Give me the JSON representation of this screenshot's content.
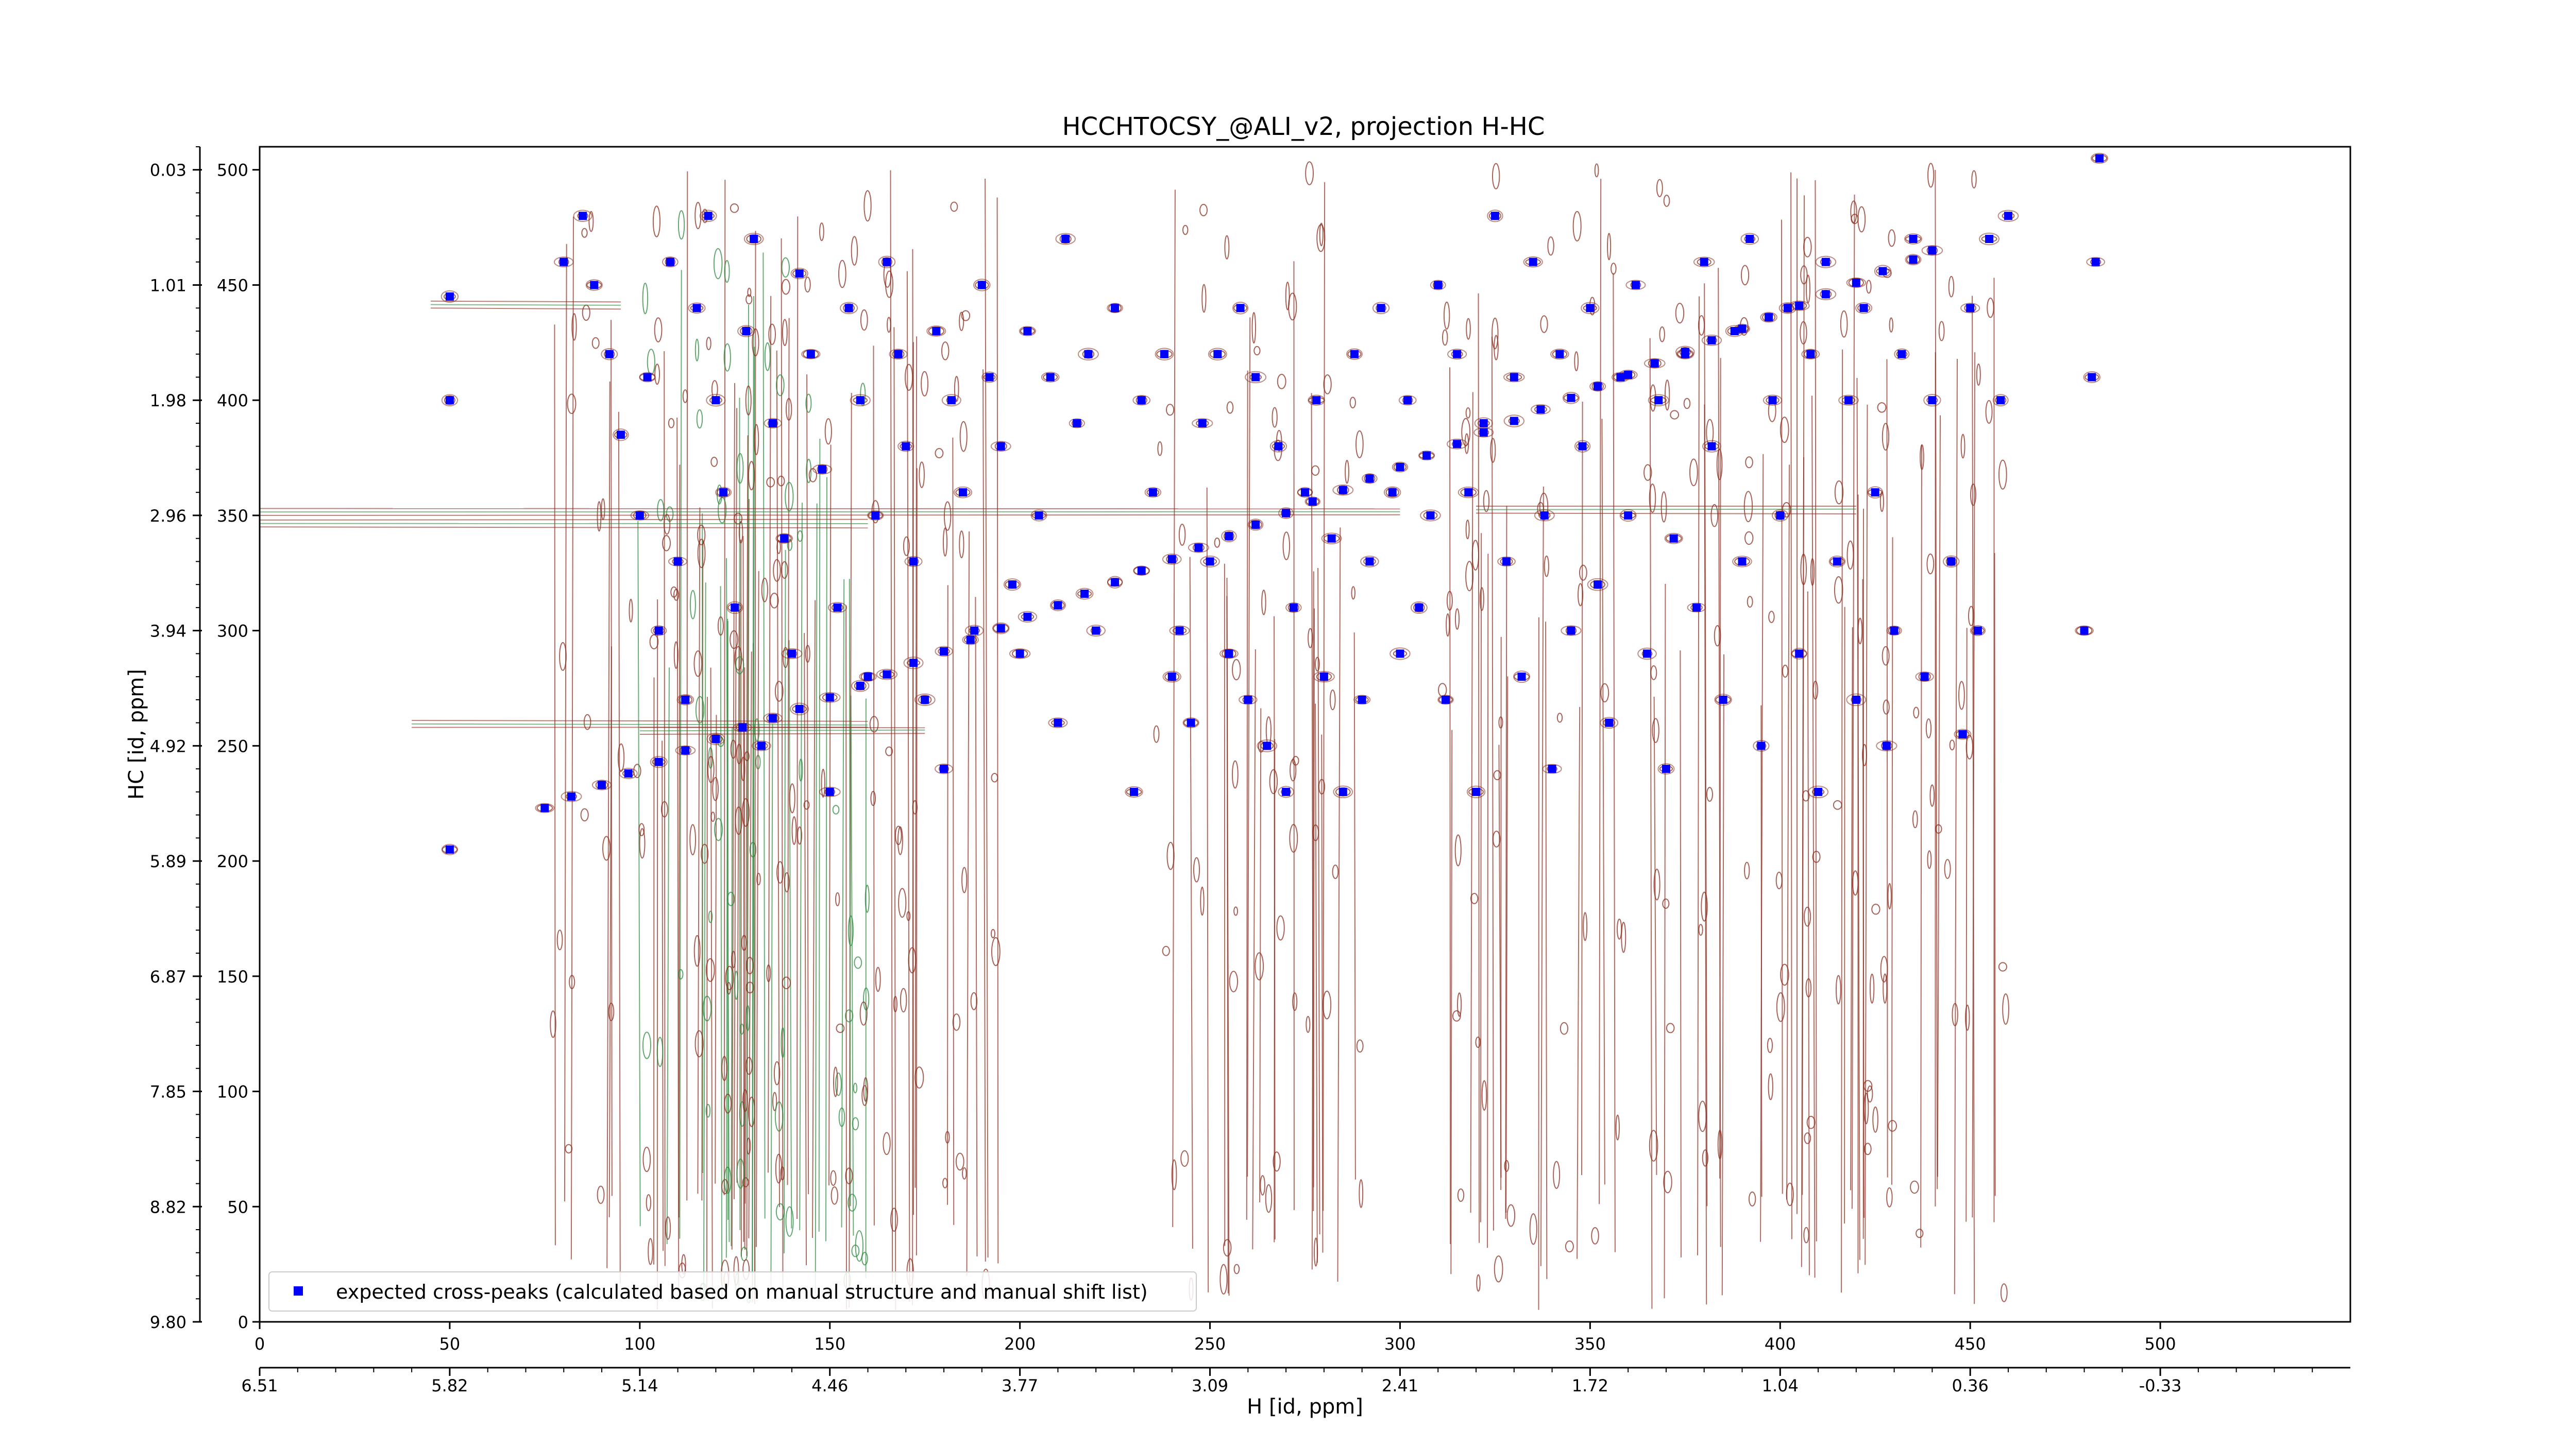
{
  "chart_data": {
    "type": "scatter",
    "title": "HCCHTOCSY_@ALI_v2, projection H-HC",
    "xlabel": "",
    "ylabel": "HC [id, ppm]",
    "xlabel_secondary": "H [id, ppm]",
    "xlim": [
      0,
      550
    ],
    "ylim": [
      0,
      510
    ],
    "x_ticks": [
      "0",
      "50",
      "100",
      "150",
      "200",
      "250",
      "300",
      "350",
      "400",
      "450",
      "500"
    ],
    "x_ticks_secondary": [
      "6.51",
      "5.82",
      "5.14",
      "4.46",
      "3.77",
      "3.09",
      "2.41",
      "1.72",
      "1.04",
      "0.36",
      "-0.33"
    ],
    "y_ticks": [
      "0",
      "50",
      "100",
      "150",
      "200",
      "250",
      "300",
      "350",
      "400",
      "450",
      "500"
    ],
    "y_ticks_secondary": [
      "9.80",
      "8.82",
      "7.85",
      "6.87",
      "5.89",
      "4.92",
      "3.94",
      "2.96",
      "1.98",
      "1.01",
      "0.03"
    ],
    "legend": {
      "position": "lower-left",
      "label": "expected cross-peaks (calculated based on manual structure and manual shift list)"
    },
    "colors": {
      "marker": "#0000ff",
      "contour_positive": "#8b2d1f",
      "contour_negative": "#2e8b40"
    },
    "series": [
      {
        "name": "expected cross-peaks (calculated based on manual structure and manual shift list)",
        "diagonal": [
          [
            75,
            223
          ],
          [
            82,
            228
          ],
          [
            90,
            233
          ],
          [
            97,
            238
          ],
          [
            105,
            243
          ],
          [
            112,
            248
          ],
          [
            120,
            253
          ],
          [
            127,
            258
          ],
          [
            135,
            262
          ],
          [
            142,
            266
          ],
          [
            150,
            271
          ],
          [
            158,
            276
          ],
          [
            165,
            281
          ],
          [
            172,
            286
          ],
          [
            180,
            291
          ],
          [
            187,
            296
          ],
          [
            195,
            301
          ],
          [
            202,
            306
          ],
          [
            210,
            311
          ],
          [
            217,
            316
          ],
          [
            225,
            321
          ],
          [
            232,
            326
          ],
          [
            240,
            331
          ],
          [
            247,
            336
          ],
          [
            255,
            341
          ],
          [
            262,
            346
          ],
          [
            270,
            351
          ],
          [
            277,
            356
          ],
          [
            285,
            361
          ],
          [
            292,
            366
          ],
          [
            300,
            371
          ],
          [
            307,
            376
          ],
          [
            315,
            381
          ],
          [
            322,
            386
          ],
          [
            330,
            391
          ],
          [
            337,
            396
          ],
          [
            345,
            401
          ],
          [
            352,
            406
          ],
          [
            360,
            411
          ],
          [
            367,
            416
          ],
          [
            375,
            421
          ],
          [
            382,
            426
          ],
          [
            390,
            431
          ],
          [
            397,
            436
          ],
          [
            405,
            441
          ],
          [
            412,
            446
          ],
          [
            420,
            451
          ],
          [
            427,
            456
          ],
          [
            435,
            461
          ],
          [
            440,
            465
          ]
        ],
        "cross_peaks": [
          [
            50,
            205
          ],
          [
            50,
            400
          ],
          [
            50,
            445
          ],
          [
            80,
            460
          ],
          [
            85,
            480
          ],
          [
            88,
            450
          ],
          [
            92,
            420
          ],
          [
            95,
            385
          ],
          [
            100,
            350
          ],
          [
            102,
            410
          ],
          [
            105,
            300
          ],
          [
            108,
            460
          ],
          [
            110,
            330
          ],
          [
            112,
            270
          ],
          [
            115,
            440
          ],
          [
            118,
            480
          ],
          [
            120,
            400
          ],
          [
            122,
            360
          ],
          [
            125,
            310
          ],
          [
            128,
            430
          ],
          [
            130,
            470
          ],
          [
            132,
            250
          ],
          [
            135,
            390
          ],
          [
            138,
            340
          ],
          [
            140,
            290
          ],
          [
            142,
            455
          ],
          [
            145,
            420
          ],
          [
            148,
            370
          ],
          [
            150,
            230
          ],
          [
            152,
            310
          ],
          [
            155,
            440
          ],
          [
            158,
            400
          ],
          [
            160,
            280
          ],
          [
            162,
            350
          ],
          [
            165,
            460
          ],
          [
            168,
            420
          ],
          [
            170,
            380
          ],
          [
            172,
            330
          ],
          [
            175,
            270
          ],
          [
            178,
            430
          ],
          [
            180,
            240
          ],
          [
            182,
            400
          ],
          [
            185,
            360
          ],
          [
            188,
            300
          ],
          [
            190,
            450
          ],
          [
            192,
            410
          ],
          [
            195,
            380
          ],
          [
            198,
            320
          ],
          [
            200,
            290
          ],
          [
            202,
            430
          ],
          [
            205,
            350
          ],
          [
            208,
            410
          ],
          [
            210,
            260
          ],
          [
            212,
            470
          ],
          [
            215,
            390
          ],
          [
            218,
            420
          ],
          [
            220,
            300
          ],
          [
            225,
            440
          ],
          [
            230,
            230
          ],
          [
            232,
            400
          ],
          [
            235,
            360
          ],
          [
            238,
            420
          ],
          [
            240,
            280
          ],
          [
            242,
            300
          ],
          [
            245,
            260
          ],
          [
            248,
            390
          ],
          [
            250,
            330
          ],
          [
            252,
            420
          ],
          [
            255,
            290
          ],
          [
            258,
            440
          ],
          [
            260,
            270
          ],
          [
            262,
            410
          ],
          [
            265,
            250
          ],
          [
            268,
            380
          ],
          [
            270,
            230
          ],
          [
            272,
            310
          ],
          [
            275,
            360
          ],
          [
            278,
            400
          ],
          [
            280,
            280
          ],
          [
            282,
            340
          ],
          [
            285,
            230
          ],
          [
            288,
            420
          ],
          [
            290,
            270
          ],
          [
            292,
            330
          ],
          [
            295,
            440
          ],
          [
            298,
            360
          ],
          [
            300,
            290
          ],
          [
            302,
            400
          ],
          [
            305,
            310
          ],
          [
            308,
            350
          ],
          [
            310,
            450
          ],
          [
            312,
            270
          ],
          [
            315,
            420
          ],
          [
            318,
            360
          ],
          [
            320,
            230
          ],
          [
            322,
            390
          ],
          [
            325,
            480
          ],
          [
            328,
            330
          ],
          [
            330,
            410
          ],
          [
            332,
            280
          ],
          [
            335,
            460
          ],
          [
            338,
            350
          ],
          [
            340,
            240
          ],
          [
            342,
            420
          ],
          [
            345,
            300
          ],
          [
            348,
            380
          ],
          [
            350,
            440
          ],
          [
            352,
            320
          ],
          [
            355,
            260
          ],
          [
            358,
            410
          ],
          [
            360,
            350
          ],
          [
            362,
            450
          ],
          [
            365,
            290
          ],
          [
            368,
            400
          ],
          [
            370,
            240
          ],
          [
            372,
            340
          ],
          [
            375,
            420
          ],
          [
            378,
            310
          ],
          [
            380,
            460
          ],
          [
            382,
            380
          ],
          [
            385,
            270
          ],
          [
            388,
            430
          ],
          [
            390,
            330
          ],
          [
            392,
            470
          ],
          [
            395,
            250
          ],
          [
            398,
            400
          ],
          [
            400,
            350
          ],
          [
            402,
            440
          ],
          [
            405,
            290
          ],
          [
            408,
            420
          ],
          [
            410,
            230
          ],
          [
            412,
            460
          ],
          [
            415,
            330
          ],
          [
            418,
            400
          ],
          [
            420,
            270
          ],
          [
            422,
            440
          ],
          [
            425,
            360
          ],
          [
            428,
            250
          ],
          [
            430,
            300
          ],
          [
            432,
            420
          ],
          [
            435,
            470
          ],
          [
            438,
            280
          ],
          [
            440,
            400
          ],
          [
            445,
            330
          ],
          [
            448,
            255
          ],
          [
            450,
            440
          ],
          [
            452,
            300
          ],
          [
            455,
            470
          ],
          [
            458,
            400
          ],
          [
            460,
            480
          ],
          [
            480,
            300
          ],
          [
            482,
            410
          ],
          [
            483,
            460
          ],
          [
            484,
            505
          ]
        ]
      }
    ]
  }
}
